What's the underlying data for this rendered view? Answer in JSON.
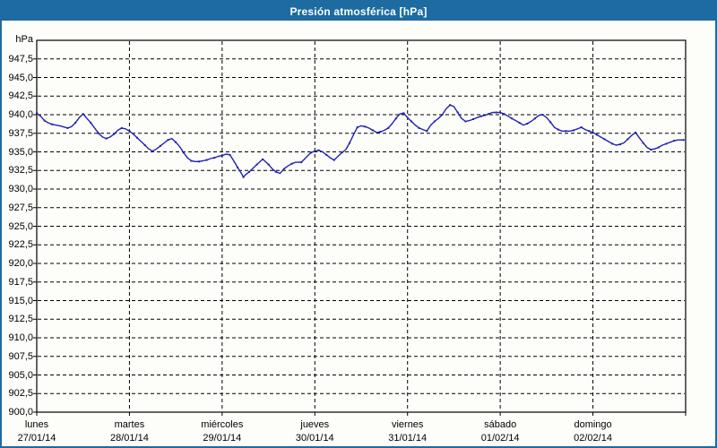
{
  "window": {
    "title": "Presión atmosférica [hPa]"
  },
  "colors": {
    "titlebar_bg": "#1d6ba1",
    "title_text": "#ffffff",
    "frame": "#000000",
    "grid": "#000000",
    "line": "#2121b2",
    "background": "#fdfefa",
    "label_text": "#000000"
  },
  "chart_data": {
    "type": "line",
    "title": "Presión atmosférica [hPa]",
    "y_unit_label": "hPa",
    "ylabel": "",
    "xlabel": "",
    "ylim": [
      900,
      950
    ],
    "ytick_step": 2.5,
    "grid": "dashed",
    "legend": "none",
    "y_ticks": [
      {
        "label": "947,5",
        "value": 947.5
      },
      {
        "label": "945,0",
        "value": 945.0
      },
      {
        "label": "942,5",
        "value": 942.5
      },
      {
        "label": "940,0",
        "value": 940.0
      },
      {
        "label": "937,5",
        "value": 937.5
      },
      {
        "label": "935,0",
        "value": 935.0
      },
      {
        "label": "932,5",
        "value": 932.5
      },
      {
        "label": "930,0",
        "value": 930.0
      },
      {
        "label": "927,5",
        "value": 927.5
      },
      {
        "label": "925,0",
        "value": 925.0
      },
      {
        "label": "922,5",
        "value": 922.5
      },
      {
        "label": "920,0",
        "value": 920.0
      },
      {
        "label": "917,5",
        "value": 917.5
      },
      {
        "label": "915,0",
        "value": 915.0
      },
      {
        "label": "912,5",
        "value": 912.5
      },
      {
        "label": "910,0",
        "value": 910.0
      },
      {
        "label": "907,5",
        "value": 907.5
      },
      {
        "label": "905,0",
        "value": 905.0
      },
      {
        "label": "902,5",
        "value": 902.5
      },
      {
        "label": "900,0",
        "value": 900.0
      }
    ],
    "x_days": [
      {
        "name": "lunes",
        "date": "27/01/14"
      },
      {
        "name": "martes",
        "date": "28/01/14"
      },
      {
        "name": "miércoles",
        "date": "29/01/14"
      },
      {
        "name": "jueves",
        "date": "30/01/14"
      },
      {
        "name": "viernes",
        "date": "31/01/14"
      },
      {
        "name": "sábado",
        "date": "01/02/14"
      },
      {
        "name": "domingo",
        "date": "02/02/14"
      }
    ],
    "x_total_hours": 168,
    "series": [
      {
        "name": "Presión atmosférica",
        "unit": "hPa",
        "hours": [
          0,
          1,
          2,
          3,
          4,
          6,
          8,
          9,
          10,
          11,
          12,
          13,
          14,
          15,
          16,
          17,
          18,
          19,
          20,
          21,
          22,
          23,
          24,
          25,
          26,
          27,
          28,
          29,
          30,
          31,
          32,
          33,
          34,
          35,
          36,
          37,
          38,
          39,
          40,
          41,
          42,
          43,
          44,
          45,
          46,
          47,
          48,
          49,
          50,
          51,
          52,
          53,
          53.5,
          54,
          55,
          56,
          57,
          58,
          58.5,
          59,
          60,
          61,
          62,
          63,
          64,
          65,
          66,
          67,
          68.5,
          70,
          71,
          72,
          73,
          74,
          75,
          76,
          77,
          78,
          79,
          80,
          81,
          82,
          83,
          84,
          85,
          86,
          87,
          88,
          89,
          90,
          91,
          92,
          93,
          94,
          95,
          96,
          97,
          98,
          99,
          100,
          101,
          102,
          103,
          104,
          105,
          106,
          107,
          108,
          109,
          110,
          111,
          112,
          113,
          114,
          115,
          116,
          117,
          118,
          119,
          120,
          121,
          122,
          123,
          124,
          125,
          126,
          127,
          128,
          129,
          130,
          131,
          132,
          133,
          134,
          135,
          136,
          137,
          138,
          139,
          140,
          141,
          142,
          143,
          144,
          145,
          146,
          147,
          148,
          149,
          150,
          151,
          152,
          153,
          154,
          155,
          156,
          157,
          158,
          159,
          160,
          161,
          162,
          163,
          164,
          165,
          166,
          167.5
        ],
        "values": [
          940.2,
          939.8,
          939.2,
          938.9,
          938.7,
          938.5,
          938.2,
          938.4,
          938.9,
          939.6,
          940.1,
          939.5,
          938.9,
          938.2,
          937.5,
          937.0,
          936.8,
          937.0,
          937.4,
          937.9,
          938.2,
          938.1,
          937.8,
          937.4,
          936.9,
          936.4,
          935.9,
          935.4,
          935.1,
          935.4,
          935.8,
          936.2,
          936.6,
          936.8,
          936.3,
          935.7,
          934.9,
          934.2,
          933.8,
          933.7,
          933.7,
          933.8,
          933.9,
          934.1,
          934.2,
          934.4,
          934.5,
          934.7,
          934.6,
          933.8,
          932.9,
          932.1,
          931.6,
          931.9,
          932.3,
          932.8,
          933.3,
          933.8,
          934.0,
          933.8,
          933.3,
          932.7,
          932.3,
          932.1,
          932.7,
          933.1,
          933.4,
          933.6,
          933.6,
          934.4,
          934.9,
          935.1,
          935.2,
          935.0,
          934.6,
          934.2,
          933.9,
          934.4,
          934.9,
          935.3,
          936.2,
          937.3,
          938.3,
          938.5,
          938.4,
          938.2,
          937.9,
          937.6,
          937.7,
          937.9,
          938.2,
          938.8,
          939.5,
          940.1,
          940.2,
          939.6,
          939.1,
          938.6,
          938.2,
          938.0,
          937.8,
          938.6,
          939.1,
          939.5,
          940.0,
          940.8,
          941.3,
          941.1,
          940.3,
          939.5,
          939.1,
          939.2,
          939.4,
          939.6,
          939.8,
          939.9,
          940.1,
          940.3,
          940.3,
          940.3,
          940.1,
          939.8,
          939.5,
          939.2,
          938.9,
          938.6,
          938.8,
          939.1,
          939.5,
          939.9,
          940.0,
          939.6,
          939.0,
          938.3,
          938.0,
          937.8,
          937.8,
          937.8,
          937.9,
          938.1,
          938.3,
          938.0,
          937.8,
          937.6,
          937.3,
          937.0,
          936.7,
          936.4,
          936.1,
          935.9,
          936.0,
          936.2,
          936.7,
          937.2,
          937.6,
          936.9,
          936.2,
          935.6,
          935.3,
          935.4,
          935.6,
          935.9,
          936.1,
          936.3,
          936.5,
          936.6,
          936.6
        ]
      }
    ]
  }
}
